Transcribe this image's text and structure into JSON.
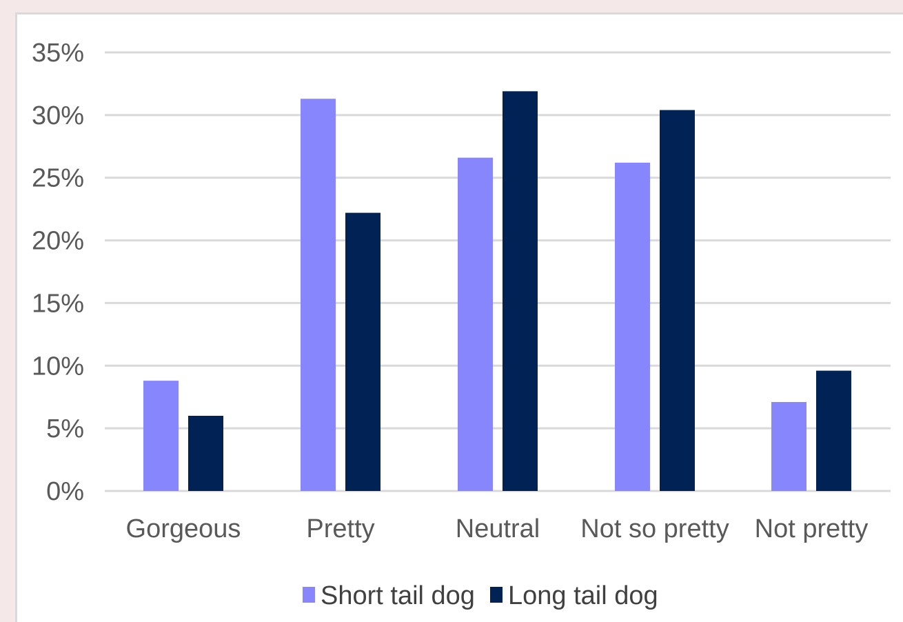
{
  "chart_data": {
    "type": "bar",
    "title": "",
    "xlabel": "",
    "ylabel": "",
    "categories": [
      "Gorgeous",
      "Pretty",
      "Neutral",
      "Not so pretty",
      "Not pretty"
    ],
    "series": [
      {
        "name": "Short tail dog",
        "color": "#8886fd",
        "values": [
          8.8,
          31.3,
          26.6,
          26.2,
          7.1
        ]
      },
      {
        "name": "Long tail dog",
        "color": "#002255",
        "values": [
          6.0,
          22.2,
          31.9,
          30.4,
          9.6
        ]
      }
    ],
    "ylim": [
      0,
      35
    ],
    "yticks": [
      "0%",
      "5%",
      "10%",
      "15%",
      "20%",
      "25%",
      "30%",
      "35%"
    ],
    "grid": true,
    "gridline_color": "#d9d9d9",
    "legend_position": "bottom"
  }
}
